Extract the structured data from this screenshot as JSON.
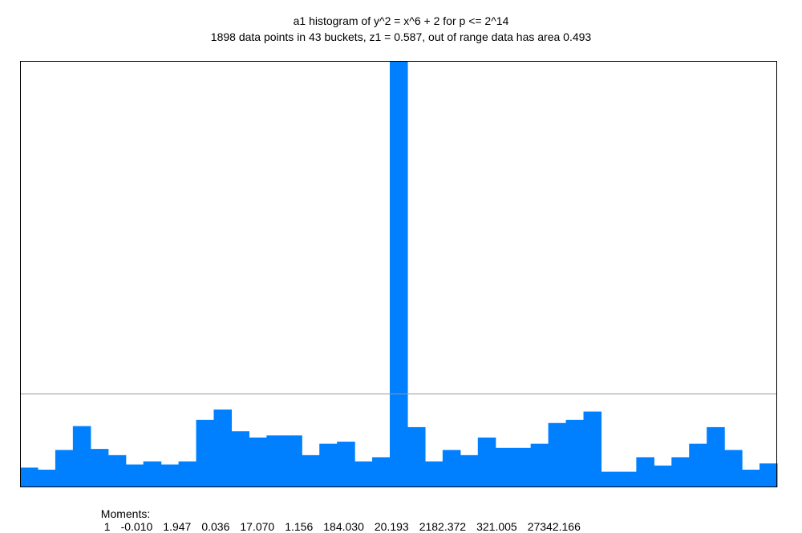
{
  "chart_data": {
    "type": "bar",
    "title": "a1 histogram of y^2 = x^6 + 2 for p <= 2^14",
    "subtitle": "1898 data points in 43 buckets, z1 = 0.587, out of range data has area 0.493",
    "bucket_count": 43,
    "values": [
      0.19,
      0.17,
      0.36,
      0.59,
      0.37,
      0.31,
      0.22,
      0.25,
      0.22,
      0.25,
      0.65,
      0.75,
      0.54,
      0.48,
      0.5,
      0.5,
      0.31,
      0.42,
      0.44,
      0.25,
      0.29,
      4.11,
      0.58,
      0.25,
      0.36,
      0.31,
      0.48,
      0.38,
      0.38,
      0.42,
      0.62,
      0.65,
      0.73,
      0.15,
      0.15,
      0.29,
      0.21,
      0.29,
      0.42,
      0.58,
      0.36,
      0.17,
      0.23
    ],
    "ylim": [
      0,
      4.11
    ],
    "reference_line": 0.9,
    "bar_color": "#0080ff",
    "reference_line_color": "#999999",
    "frame_color": "#000000",
    "moments_label": "Moments:",
    "moments": [
      "1",
      "-0.010",
      "1.947",
      "0.036",
      "17.070",
      "1.156",
      "184.030",
      "20.193",
      "2182.372",
      "321.005",
      "27342.166"
    ]
  }
}
